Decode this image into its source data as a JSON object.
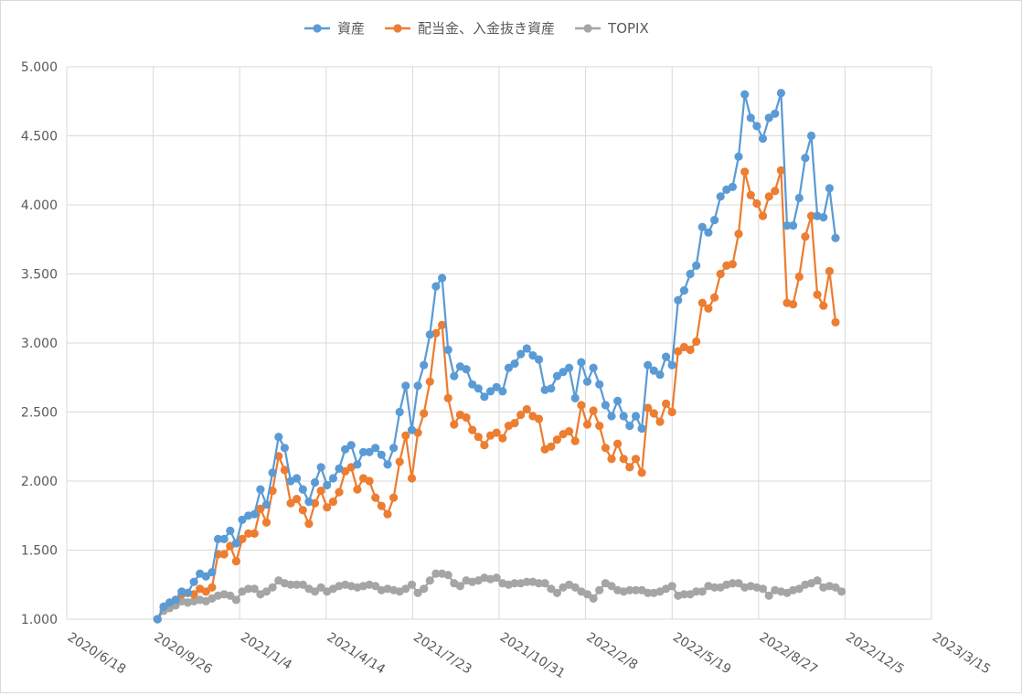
{
  "chart_data": {
    "type": "line",
    "title": "",
    "xlabel": "",
    "ylabel": "",
    "x_tick_labels": [
      "2020/6/18",
      "2020/9/26",
      "2021/1/4",
      "2021/4/14",
      "2021/7/23",
      "2021/10/31",
      "2022/2/8",
      "2022/5/19",
      "2022/8/27",
      "2022/12/5",
      "2023/3/15"
    ],
    "x_range": [
      "2020/6/18",
      "2023/3/15"
    ],
    "y_tick_labels": [
      "1.000",
      "1.500",
      "2.000",
      "2.500",
      "3.000",
      "3.500",
      "4.000",
      "4.500",
      "5.000"
    ],
    "ylim": [
      1.0,
      5.0
    ],
    "grid": "both",
    "legend_position": "top",
    "x_start": "2020/10/1",
    "x_step_days": 7,
    "series": [
      {
        "name": "資産",
        "color": "#5b9bd5",
        "values": [
          1.0,
          1.09,
          1.12,
          1.14,
          1.2,
          1.19,
          1.27,
          1.33,
          1.31,
          1.34,
          1.58,
          1.58,
          1.64,
          1.55,
          1.72,
          1.75,
          1.76,
          1.94,
          1.83,
          2.06,
          2.32,
          2.24,
          2.0,
          2.02,
          1.94,
          1.85,
          1.99,
          2.1,
          1.97,
          2.02,
          2.09,
          2.23,
          2.26,
          2.12,
          2.21,
          2.21,
          2.24,
          2.19,
          2.12,
          2.24,
          2.5,
          2.69,
          2.37,
          2.69,
          2.84,
          3.06,
          3.41,
          3.47,
          2.95,
          2.76,
          2.83,
          2.81,
          2.7,
          2.67,
          2.61,
          2.65,
          2.68,
          2.65,
          2.82,
          2.85,
          2.92,
          2.96,
          2.91,
          2.88,
          2.66,
          2.67,
          2.76,
          2.79,
          2.82,
          2.6,
          2.86,
          2.72,
          2.82,
          2.7,
          2.55,
          2.47,
          2.58,
          2.47,
          2.4,
          2.47,
          2.38,
          2.84,
          2.8,
          2.77,
          2.9,
          2.84,
          3.31,
          3.38,
          3.5,
          3.56,
          3.84,
          3.8,
          3.89,
          4.06,
          4.11,
          4.13,
          4.35,
          4.8,
          4.63,
          4.57,
          4.48,
          4.63,
          4.66,
          4.81,
          3.85,
          3.85,
          4.05,
          4.34,
          4.5,
          3.92,
          3.91,
          4.12,
          3.76
        ]
      },
      {
        "name": "配当金、入金抜き資産",
        "color": "#ed7d31",
        "values": [
          1.0,
          1.09,
          1.12,
          1.14,
          1.18,
          1.19,
          1.18,
          1.22,
          1.2,
          1.23,
          1.47,
          1.47,
          1.53,
          1.42,
          1.58,
          1.62,
          1.62,
          1.8,
          1.7,
          1.93,
          2.18,
          2.08,
          1.84,
          1.87,
          1.79,
          1.69,
          1.84,
          1.93,
          1.81,
          1.85,
          1.92,
          2.07,
          2.1,
          1.94,
          2.02,
          2.0,
          1.88,
          1.82,
          1.76,
          1.88,
          2.14,
          2.33,
          2.02,
          2.35,
          2.49,
          2.72,
          3.07,
          3.13,
          2.6,
          2.41,
          2.48,
          2.46,
          2.37,
          2.32,
          2.26,
          2.33,
          2.35,
          2.31,
          2.4,
          2.42,
          2.48,
          2.52,
          2.47,
          2.45,
          2.23,
          2.25,
          2.3,
          2.34,
          2.36,
          2.29,
          2.55,
          2.41,
          2.51,
          2.4,
          2.24,
          2.16,
          2.27,
          2.16,
          2.1,
          2.16,
          2.06,
          2.53,
          2.49,
          2.43,
          2.56,
          2.5,
          2.94,
          2.97,
          2.95,
          3.01,
          3.29,
          3.25,
          3.33,
          3.5,
          3.56,
          3.57,
          3.79,
          4.24,
          4.07,
          4.01,
          3.92,
          4.06,
          4.1,
          4.25,
          3.29,
          3.28,
          3.48,
          3.77,
          3.92,
          3.35,
          3.27,
          3.52,
          3.15
        ]
      },
      {
        "name": "TOPIX",
        "color": "#a5a5a5",
        "values": [
          1.0,
          1.06,
          1.08,
          1.1,
          1.13,
          1.12,
          1.13,
          1.14,
          1.13,
          1.15,
          1.17,
          1.18,
          1.17,
          1.14,
          1.2,
          1.22,
          1.22,
          1.18,
          1.2,
          1.23,
          1.28,
          1.26,
          1.25,
          1.25,
          1.25,
          1.22,
          1.2,
          1.23,
          1.2,
          1.22,
          1.24,
          1.25,
          1.24,
          1.23,
          1.24,
          1.25,
          1.24,
          1.21,
          1.22,
          1.21,
          1.2,
          1.22,
          1.25,
          1.19,
          1.22,
          1.28,
          1.33,
          1.33,
          1.32,
          1.26,
          1.24,
          1.28,
          1.27,
          1.28,
          1.3,
          1.29,
          1.3,
          1.26,
          1.25,
          1.26,
          1.26,
          1.27,
          1.27,
          1.26,
          1.26,
          1.22,
          1.19,
          1.23,
          1.25,
          1.23,
          1.2,
          1.18,
          1.15,
          1.21,
          1.26,
          1.24,
          1.21,
          1.2,
          1.21,
          1.21,
          1.21,
          1.19,
          1.19,
          1.2,
          1.22,
          1.24,
          1.17,
          1.18,
          1.18,
          1.2,
          1.2,
          1.24,
          1.23,
          1.23,
          1.25,
          1.26,
          1.26,
          1.23,
          1.24,
          1.23,
          1.22,
          1.17,
          1.21,
          1.2,
          1.19,
          1.21,
          1.22,
          1.25,
          1.26,
          1.28,
          1.23,
          1.24,
          1.23,
          1.2
        ]
      }
    ]
  }
}
